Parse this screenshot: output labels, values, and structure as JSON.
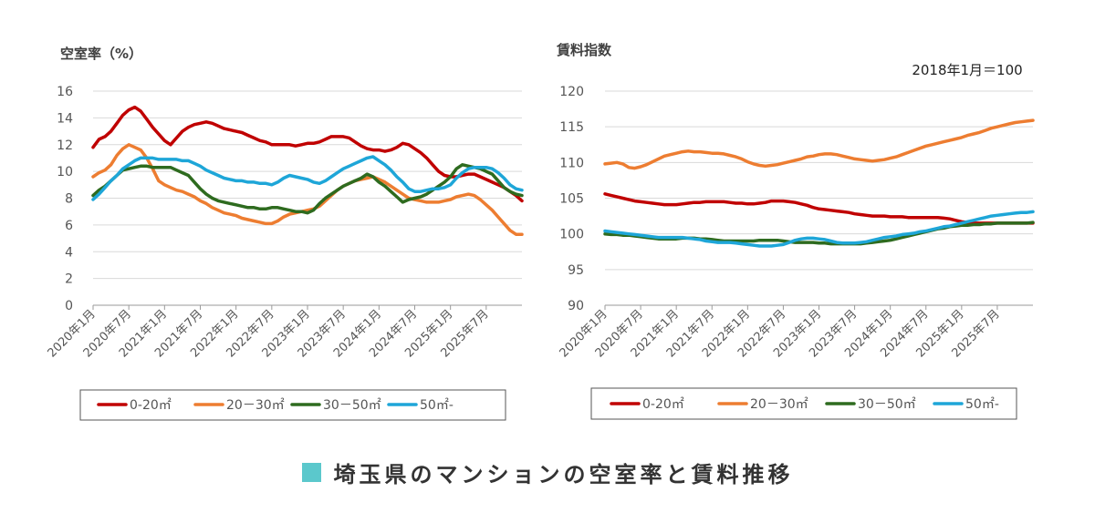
{
  "page": {
    "caption": "埼玉県のマンションの空室率と賃料推移",
    "caption_square_color": "#5bc8cc"
  },
  "colors": {
    "0-20": "#c00000",
    "20-30": "#ed7d31",
    "30-50": "#2e6b1f",
    "50-": "#1ea6d8"
  },
  "chart_data": [
    {
      "type": "line",
      "title": "空室率（%）",
      "note": "",
      "ylim": [
        0,
        16
      ],
      "yticks": [
        0,
        2,
        4,
        6,
        8,
        10,
        12,
        14,
        16
      ],
      "x_tick_labels": [
        "2020年1月",
        "2020年7月",
        "2021年1月",
        "2021年7月",
        "2022年1月",
        "2022年7月",
        "2023年1月",
        "2023年7月",
        "2024年1月",
        "2024年7月",
        "2025年1月",
        "2025年7月"
      ],
      "x_months": 73,
      "legend_position": "bottom",
      "grid": true,
      "series": [
        {
          "name": "0-20㎡",
          "color_key": "0-20",
          "values": [
            11.8,
            12.4,
            12.6,
            13.0,
            13.6,
            14.2,
            14.6,
            14.8,
            14.5,
            13.9,
            13.3,
            12.8,
            12.3,
            12.0,
            12.5,
            13.0,
            13.3,
            13.5,
            13.6,
            13.7,
            13.6,
            13.4,
            13.2,
            13.1,
            13.0,
            12.9,
            12.7,
            12.5,
            12.3,
            12.2,
            12.0,
            12.0,
            12.0,
            12.0,
            11.9,
            12.0,
            12.1,
            12.1,
            12.2,
            12.4,
            12.6,
            12.6,
            12.6,
            12.5,
            12.2,
            11.9,
            11.7,
            11.6,
            11.6,
            11.5,
            11.6,
            11.8,
            12.1,
            12.0,
            11.7,
            11.4,
            11.0,
            10.5,
            10.0,
            9.7,
            9.6,
            9.6,
            9.7,
            9.8,
            9.8,
            9.6,
            9.4,
            9.2,
            9.0,
            8.8,
            8.5,
            8.2,
            7.8
          ]
        },
        {
          "name": "20－30㎡",
          "color_key": "20-30",
          "values": [
            9.6,
            9.9,
            10.1,
            10.5,
            11.2,
            11.7,
            12.0,
            11.8,
            11.6,
            11.0,
            10.2,
            9.3,
            9.0,
            8.8,
            8.6,
            8.5,
            8.3,
            8.1,
            7.8,
            7.6,
            7.3,
            7.1,
            6.9,
            6.8,
            6.7,
            6.5,
            6.4,
            6.3,
            6.2,
            6.1,
            6.1,
            6.3,
            6.6,
            6.8,
            6.9,
            7.0,
            7.1,
            7.2,
            7.4,
            7.8,
            8.2,
            8.6,
            8.9,
            9.1,
            9.3,
            9.4,
            9.5,
            9.6,
            9.4,
            9.2,
            8.9,
            8.6,
            8.3,
            8.0,
            7.9,
            7.8,
            7.7,
            7.7,
            7.7,
            7.8,
            7.9,
            8.1,
            8.2,
            8.3,
            8.2,
            7.9,
            7.5,
            7.1,
            6.6,
            6.1,
            5.6,
            5.3,
            5.3
          ]
        },
        {
          "name": "30－50㎡",
          "color_key": "30-50",
          "values": [
            8.2,
            8.6,
            8.9,
            9.3,
            9.7,
            10.1,
            10.2,
            10.3,
            10.4,
            10.4,
            10.3,
            10.3,
            10.3,
            10.3,
            10.1,
            9.9,
            9.7,
            9.2,
            8.7,
            8.3,
            8.0,
            7.8,
            7.7,
            7.6,
            7.5,
            7.4,
            7.3,
            7.3,
            7.2,
            7.2,
            7.3,
            7.3,
            7.2,
            7.1,
            7.0,
            7.0,
            6.9,
            7.1,
            7.6,
            8.0,
            8.3,
            8.6,
            8.9,
            9.1,
            9.3,
            9.5,
            9.8,
            9.6,
            9.2,
            8.9,
            8.5,
            8.1,
            7.7,
            7.9,
            8.0,
            8.1,
            8.3,
            8.6,
            8.9,
            9.2,
            9.6,
            10.2,
            10.5,
            10.4,
            10.3,
            10.2,
            10.0,
            9.8,
            9.3,
            8.8,
            8.5,
            8.3,
            8.2
          ]
        },
        {
          "name": "50㎡-",
          "color_key": "50-",
          "values": [
            7.9,
            8.3,
            8.8,
            9.3,
            9.7,
            10.2,
            10.5,
            10.8,
            11.0,
            11.0,
            11.0,
            10.9,
            10.9,
            10.9,
            10.9,
            10.8,
            10.8,
            10.6,
            10.4,
            10.1,
            9.9,
            9.7,
            9.5,
            9.4,
            9.3,
            9.3,
            9.2,
            9.2,
            9.1,
            9.1,
            9.0,
            9.2,
            9.5,
            9.7,
            9.6,
            9.5,
            9.4,
            9.2,
            9.1,
            9.3,
            9.6,
            9.9,
            10.2,
            10.4,
            10.6,
            10.8,
            11.0,
            11.1,
            10.8,
            10.5,
            10.1,
            9.6,
            9.2,
            8.7,
            8.5,
            8.5,
            8.6,
            8.7,
            8.7,
            8.8,
            9.0,
            9.5,
            9.9,
            10.2,
            10.3,
            10.3,
            10.3,
            10.2,
            9.9,
            9.5,
            9.0,
            8.7,
            8.6
          ]
        }
      ]
    },
    {
      "type": "line",
      "title": "賃料指数",
      "note": "2018年1月＝100",
      "ylim": [
        90,
        120
      ],
      "yticks": [
        90,
        95,
        100,
        105,
        110,
        115,
        120
      ],
      "x_tick_labels": [
        "2020年1月",
        "2020年7月",
        "2021年1月",
        "2021年7月",
        "2022年1月",
        "2022年7月",
        "2023年1月",
        "2023年7月",
        "2024年1月",
        "2024年7月",
        "2025年1月",
        "2025年7月"
      ],
      "x_months": 73,
      "legend_position": "bottom",
      "grid": true,
      "series": [
        {
          "name": "0-20㎡",
          "color_key": "0-20",
          "values": [
            105.6,
            105.4,
            105.2,
            105.0,
            104.8,
            104.6,
            104.5,
            104.4,
            104.3,
            104.2,
            104.1,
            104.1,
            104.1,
            104.2,
            104.3,
            104.4,
            104.4,
            104.5,
            104.5,
            104.5,
            104.5,
            104.4,
            104.3,
            104.3,
            104.2,
            104.2,
            104.3,
            104.4,
            104.6,
            104.6,
            104.6,
            104.5,
            104.4,
            104.2,
            104.0,
            103.7,
            103.5,
            103.4,
            103.3,
            103.2,
            103.1,
            103.0,
            102.8,
            102.7,
            102.6,
            102.5,
            102.5,
            102.5,
            102.4,
            102.4,
            102.4,
            102.3,
            102.3,
            102.3,
            102.3,
            102.3,
            102.3,
            102.2,
            102.1,
            101.9,
            101.7,
            101.6,
            101.5,
            101.5,
            101.5,
            101.5,
            101.5,
            101.5,
            101.5,
            101.5,
            101.5,
            101.5,
            101.5
          ]
        },
        {
          "name": "20－30㎡",
          "color_key": "20-30",
          "values": [
            109.8,
            109.9,
            110.0,
            109.8,
            109.3,
            109.2,
            109.4,
            109.7,
            110.1,
            110.5,
            110.9,
            111.1,
            111.3,
            111.5,
            111.6,
            111.5,
            111.5,
            111.4,
            111.3,
            111.3,
            111.2,
            111.0,
            110.8,
            110.5,
            110.1,
            109.8,
            109.6,
            109.5,
            109.6,
            109.7,
            109.9,
            110.1,
            110.3,
            110.5,
            110.8,
            110.9,
            111.1,
            111.2,
            111.2,
            111.1,
            110.9,
            110.7,
            110.5,
            110.4,
            110.3,
            110.2,
            110.3,
            110.4,
            110.6,
            110.8,
            111.1,
            111.4,
            111.7,
            112.0,
            112.3,
            112.5,
            112.7,
            112.9,
            113.1,
            113.3,
            113.5,
            113.8,
            114.0,
            114.2,
            114.5,
            114.8,
            115.0,
            115.2,
            115.4,
            115.6,
            115.7,
            115.8,
            115.9
          ]
        },
        {
          "name": "30－50㎡",
          "color_key": "30-50",
          "values": [
            100.0,
            99.9,
            99.9,
            99.8,
            99.8,
            99.7,
            99.6,
            99.5,
            99.4,
            99.3,
            99.3,
            99.3,
            99.3,
            99.4,
            99.4,
            99.4,
            99.3,
            99.3,
            99.2,
            99.1,
            99.0,
            99.0,
            99.0,
            99.0,
            99.0,
            99.0,
            99.1,
            99.1,
            99.1,
            99.1,
            99.0,
            98.9,
            98.8,
            98.8,
            98.8,
            98.8,
            98.7,
            98.7,
            98.6,
            98.6,
            98.6,
            98.6,
            98.6,
            98.6,
            98.7,
            98.8,
            98.9,
            99.0,
            99.1,
            99.3,
            99.5,
            99.7,
            99.9,
            100.1,
            100.3,
            100.5,
            100.7,
            100.8,
            101.0,
            101.1,
            101.2,
            101.2,
            101.3,
            101.3,
            101.4,
            101.4,
            101.5,
            101.5,
            101.5,
            101.5,
            101.5,
            101.5,
            101.6
          ]
        },
        {
          "name": "50㎡-",
          "color_key": "50-",
          "values": [
            100.4,
            100.3,
            100.2,
            100.1,
            100.0,
            99.9,
            99.8,
            99.7,
            99.6,
            99.5,
            99.5,
            99.5,
            99.5,
            99.5,
            99.4,
            99.3,
            99.2,
            99.0,
            98.9,
            98.8,
            98.8,
            98.8,
            98.7,
            98.6,
            98.5,
            98.4,
            98.3,
            98.3,
            98.3,
            98.4,
            98.5,
            98.8,
            99.1,
            99.3,
            99.4,
            99.4,
            99.3,
            99.2,
            99.0,
            98.8,
            98.7,
            98.7,
            98.7,
            98.8,
            98.9,
            99.1,
            99.3,
            99.5,
            99.6,
            99.7,
            99.9,
            100.0,
            100.1,
            100.3,
            100.4,
            100.6,
            100.8,
            101.0,
            101.1,
            101.3,
            101.5,
            101.7,
            101.9,
            102.1,
            102.3,
            102.5,
            102.6,
            102.7,
            102.8,
            102.9,
            103.0,
            103.0,
            103.1
          ]
        }
      ]
    }
  ]
}
